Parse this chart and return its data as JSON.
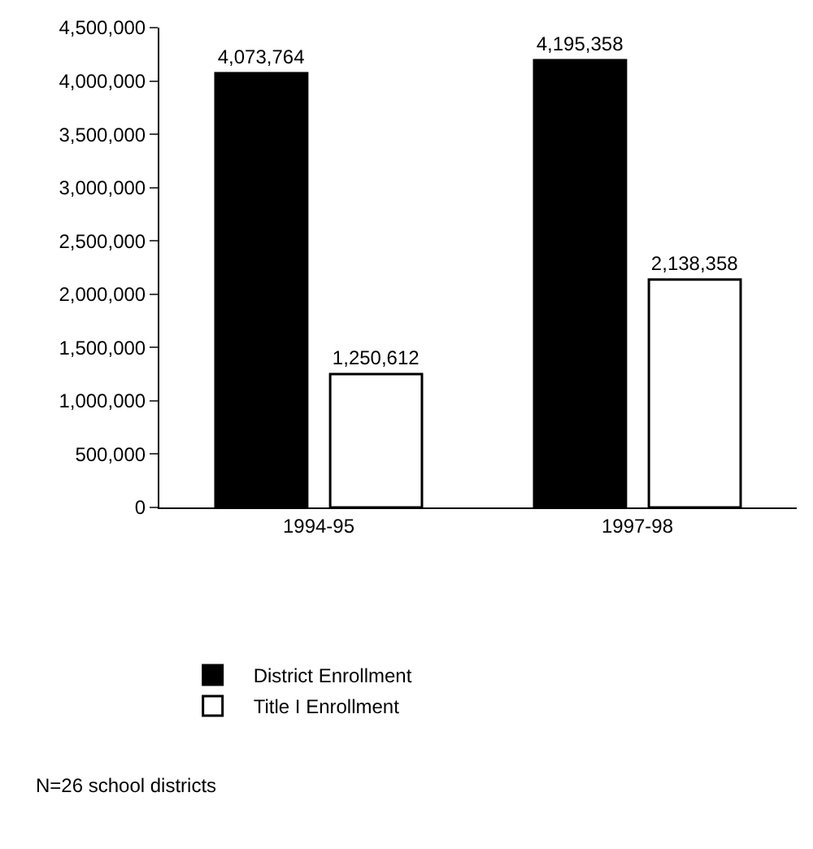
{
  "chart_data": {
    "type": "bar",
    "categories": [
      "1994-95",
      "1997-98"
    ],
    "series": [
      {
        "name": "District Enrollment",
        "color": "#000000",
        "values": [
          4073764,
          4195358
        ],
        "value_labels": [
          "4,073,764",
          "4,195,358"
        ]
      },
      {
        "name": "Title I Enrollment",
        "color": "#ffffff",
        "values": [
          1250612,
          2138358
        ],
        "value_labels": [
          "1,250,612",
          "2,138,358"
        ]
      }
    ],
    "ylim": [
      0,
      4500000
    ],
    "yticks": [
      {
        "value": 0,
        "label": "0"
      },
      {
        "value": 500000,
        "label": "500,000"
      },
      {
        "value": 1000000,
        "label": "1,000,000"
      },
      {
        "value": 1500000,
        "label": "1,500,000"
      },
      {
        "value": 2000000,
        "label": "2,000,000"
      },
      {
        "value": 2500000,
        "label": "2,500,000"
      },
      {
        "value": 3000000,
        "label": "3,000,000"
      },
      {
        "value": 3500000,
        "label": "3,500,000"
      },
      {
        "value": 4000000,
        "label": "4,000,000"
      },
      {
        "value": 4500000,
        "label": "4,500,000"
      }
    ],
    "grid": false,
    "legend": "bottom",
    "annotations": [
      "N=26 school districts"
    ]
  }
}
